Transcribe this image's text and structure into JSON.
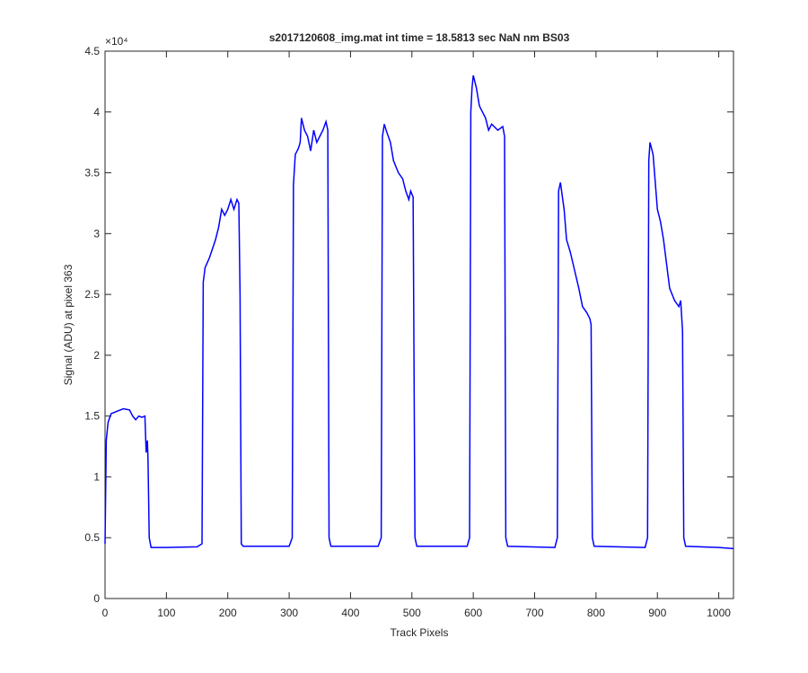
{
  "chart_data": {
    "type": "line",
    "title": "s2017120608_img.mat int time = 18.5813 sec  NaN nm BS03",
    "xlabel": "Track Pixels",
    "ylabel": "Signal (ADU) at pixel 363",
    "y_exponent": "×10⁴",
    "color": "#0000ff",
    "grid": false,
    "xlim": [
      0,
      1024
    ],
    "xticks": [
      0,
      100,
      200,
      300,
      400,
      500,
      600,
      700,
      800,
      900,
      1000
    ],
    "ylim": [
      0,
      4.5
    ],
    "yticks": [
      0,
      0.5,
      1,
      1.5,
      2,
      2.5,
      3,
      3.5,
      4,
      4.5
    ],
    "x": [
      0,
      2,
      5,
      10,
      20,
      30,
      40,
      45,
      50,
      55,
      60,
      65,
      67,
      69,
      70,
      72,
      75,
      100,
      150,
      158,
      160,
      163,
      170,
      180,
      185,
      190,
      195,
      200,
      205,
      210,
      215,
      218,
      220,
      222,
      225,
      300,
      305,
      307,
      310,
      315,
      318,
      320,
      325,
      330,
      335,
      340,
      345,
      350,
      355,
      360,
      363,
      365,
      368,
      445,
      450,
      452,
      455,
      458,
      465,
      470,
      478,
      485,
      490,
      495,
      498,
      502,
      505,
      508,
      590,
      594,
      596,
      598,
      600,
      605,
      610,
      615,
      620,
      625,
      630,
      640,
      648,
      651,
      653,
      656,
      733,
      737,
      739,
      742,
      748,
      752,
      758,
      765,
      772,
      778,
      785,
      790,
      792,
      794,
      797,
      880,
      884,
      886,
      888,
      893,
      900,
      905,
      910,
      915,
      920,
      928,
      935,
      938,
      941,
      943,
      946,
      1000,
      1024
    ],
    "values": [
      0.45,
      1.3,
      1.45,
      1.52,
      1.54,
      1.56,
      1.55,
      1.5,
      1.47,
      1.5,
      1.49,
      1.5,
      1.2,
      1.3,
      1.15,
      0.5,
      0.42,
      0.42,
      0.425,
      0.45,
      2.6,
      2.72,
      2.8,
      2.95,
      3.05,
      3.2,
      3.15,
      3.2,
      3.28,
      3.2,
      3.28,
      3.25,
      2.5,
      0.45,
      0.43,
      0.43,
      0.5,
      3.4,
      3.65,
      3.7,
      3.75,
      3.95,
      3.85,
      3.8,
      3.68,
      3.85,
      3.75,
      3.8,
      3.85,
      3.92,
      3.85,
      0.5,
      0.43,
      0.43,
      0.5,
      3.8,
      3.9,
      3.85,
      3.75,
      3.6,
      3.5,
      3.45,
      3.35,
      3.28,
      3.35,
      3.3,
      0.5,
      0.43,
      0.43,
      0.5,
      4.0,
      4.2,
      4.3,
      4.2,
      4.05,
      4.0,
      3.95,
      3.85,
      3.9,
      3.85,
      3.88,
      3.8,
      0.5,
      0.43,
      0.42,
      0.5,
      3.35,
      3.42,
      3.2,
      2.95,
      2.85,
      2.7,
      2.55,
      2.4,
      2.35,
      2.3,
      2.25,
      0.5,
      0.43,
      0.42,
      0.5,
      3.6,
      3.75,
      3.65,
      3.2,
      3.1,
      2.95,
      2.75,
      2.55,
      2.45,
      2.4,
      2.45,
      2.2,
      0.5,
      0.43,
      0.42,
      0.41
    ]
  }
}
